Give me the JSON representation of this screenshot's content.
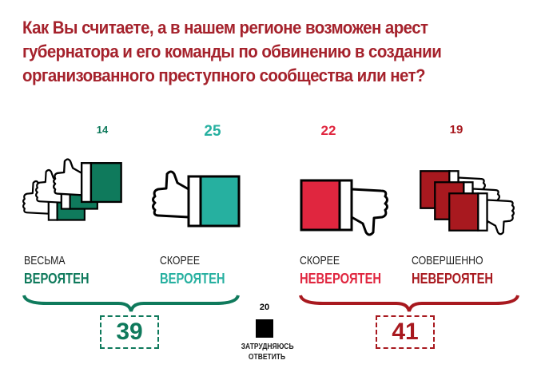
{
  "title_lines": [
    "Как Вы считаете, а в нашем регионе возможен арест",
    "губернатора и его команды по обвинению в создании",
    "организованного преступного сообщества или нет?"
  ],
  "chart_data": {
    "type": "bar",
    "title": "Как Вы считаете, а в нашем регионе возможен арест губернатора и его команды по обвинению в создании организованного преступного сообщества или нет?",
    "categories": [
      {
        "line1": "ВЕСЬМА",
        "line2": "ВЕРОЯТЕН",
        "color": "#0f7a5c"
      },
      {
        "line1": "СКОРЕЕ",
        "line2": "ВЕРОЯТЕН",
        "color": "#26b0a0"
      },
      {
        "line1": "СКОРЕЕ",
        "line2": "НЕВЕРОЯТЕН",
        "color": "#e0263f"
      },
      {
        "line1": "СОВЕРШЕННО",
        "line2": "НЕВЕРОЯТЕН",
        "color": "#a8191f"
      }
    ],
    "values": [
      14,
      25,
      22,
      19
    ],
    "groups": [
      {
        "name": "likely_total",
        "value": 39,
        "color": "#0f7a5c"
      },
      {
        "name": "unlikely_total",
        "value": 41,
        "color": "#a8191f"
      }
    ],
    "undecided": {
      "value": 20,
      "line1": "ЗАТРУДНЯЮСЬ",
      "line2": "ОТВЕТИТЬ",
      "color": "#000000"
    }
  }
}
